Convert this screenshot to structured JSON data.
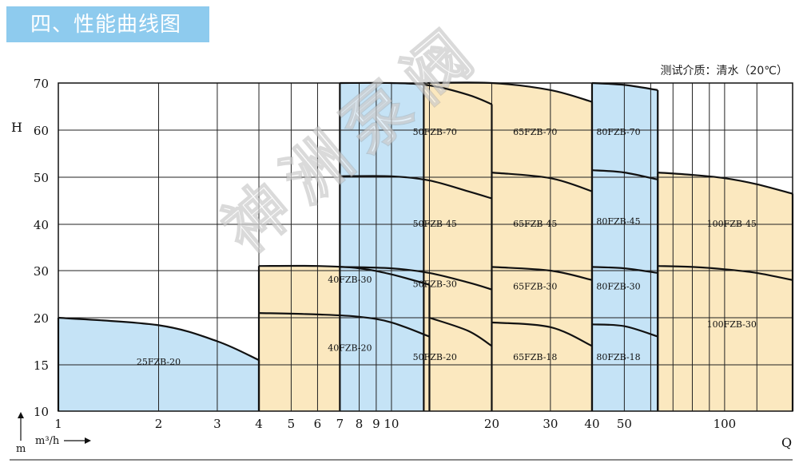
{
  "header": {
    "title": "四、性能曲线图",
    "medium_note": "测试介质：清水（20℃）"
  },
  "watermark": "神洲泵阀",
  "colors": {
    "blue_fill": "#c5e3f6",
    "yellow_fill": "#fbe8bf",
    "title_bar": "#8ecbee",
    "grid": "#222222"
  },
  "chart_data": {
    "type": "area",
    "title": "",
    "xlabel": "Q",
    "x_unit": "m³/h",
    "ylabel": "H",
    "y_unit": "m",
    "x_scale": "log",
    "xlim": [
      1,
      160
    ],
    "ylim": [
      10,
      70
    ],
    "x_ticks": [
      1,
      2,
      3,
      4,
      5,
      6,
      7,
      8,
      9,
      10,
      20,
      30,
      40,
      50,
      100
    ],
    "x_tick_labels": [
      "1",
      "2",
      "3",
      "4",
      "5",
      "6",
      "7",
      "8",
      "9",
      "10",
      "20",
      "30",
      "40",
      "50",
      "100"
    ],
    "x_gridlines": [
      1,
      2,
      3,
      4,
      5,
      6,
      7,
      8,
      9,
      10,
      13,
      20,
      30,
      40,
      50,
      60,
      70,
      80,
      90,
      100,
      125,
      160
    ],
    "y_ticks": [
      10,
      15,
      20,
      30,
      40,
      50,
      60,
      70
    ],
    "y_tick_labels": [
      "10",
      "15",
      "20",
      "30",
      "40",
      "50",
      "60",
      "70"
    ],
    "grid": true,
    "regions": [
      {
        "model_family": "25FZB",
        "fill": "blue",
        "q_range": [
          1,
          4
        ],
        "top_curve": [
          [
            1,
            20
          ],
          [
            2,
            19.2
          ],
          [
            3,
            17.5
          ],
          [
            4,
            15.5
          ]
        ],
        "curves": [
          {
            "name": "25FZB-20",
            "points": [
              [
                1,
                20
              ],
              [
                2,
                19.2
              ],
              [
                3,
                17.5
              ],
              [
                4,
                15.5
              ]
            ],
            "label_at": [
              2,
              15
            ]
          }
        ]
      },
      {
        "model_family": "40FZB",
        "fill": "yellow",
        "q_range": [
          4,
          13
        ],
        "top_curve": [
          [
            4,
            31
          ],
          [
            6,
            31
          ],
          [
            8,
            30.5
          ],
          [
            10,
            29.2
          ],
          [
            13,
            27
          ]
        ],
        "curves": [
          {
            "name": "40FZB-30",
            "points": [
              [
                4,
                31
              ],
              [
                6,
                31
              ],
              [
                8,
                30.5
              ],
              [
                10,
                29.2
              ],
              [
                13,
                27
              ]
            ],
            "label_at": [
              7.5,
              27.5
            ]
          },
          {
            "name": "40FZB-20",
            "points": [
              [
                4,
                21
              ],
              [
                6,
                20.7
              ],
              [
                8,
                20.2
              ],
              [
                10,
                19.5
              ],
              [
                13,
                18
              ]
            ],
            "label_at": [
              7.5,
              16.5
            ]
          }
        ]
      },
      {
        "model_family": "50FZB",
        "fill": "blue",
        "q_range": [
          7,
          20
        ],
        "top_curve": [
          [
            7,
            70
          ],
          [
            10,
            70
          ],
          [
            13,
            69.5
          ],
          [
            17,
            67.5
          ],
          [
            20,
            65.5
          ]
        ],
        "curves": [
          {
            "name": "50FZB-70",
            "points": [
              [
                7,
                70
              ],
              [
                10,
                70
              ],
              [
                13,
                69.5
              ],
              [
                17,
                67.5
              ],
              [
                20,
                65.5
              ]
            ],
            "label_at": [
              13.5,
              59
            ]
          },
          {
            "name": "50FZB-45",
            "points": [
              [
                7,
                50.2
              ],
              [
                10,
                50.2
              ],
              [
                13,
                49.3
              ],
              [
                17,
                47
              ],
              [
                20,
                45.5
              ]
            ],
            "label_at": [
              13.5,
              39.5
            ]
          },
          {
            "name": "50FZB-30",
            "points": [
              [
                7,
                30.8
              ],
              [
                10,
                30.5
              ],
              [
                13,
                29.5
              ],
              [
                17,
                27.5
              ],
              [
                20,
                26
              ]
            ],
            "label_at": [
              13.5,
              26.5
            ]
          },
          {
            "name": "50FZB-20",
            "points": [
              [
                13,
                20
              ],
              [
                17,
                18.6
              ],
              [
                20,
                17
              ]
            ],
            "label_at": [
              13.5,
              15.5
            ]
          }
        ]
      },
      {
        "model_family": "65FZB",
        "fill": "yellow",
        "q_range": [
          12.5,
          40
        ],
        "top_curve": [
          [
            12.5,
            70
          ],
          [
            20,
            70
          ],
          [
            30,
            68.5
          ],
          [
            40,
            66
          ]
        ],
        "curves": [
          {
            "name": "65FZB-70",
            "points": [
              [
                12.5,
                70
              ],
              [
                20,
                70
              ],
              [
                30,
                68.5
              ],
              [
                40,
                66
              ]
            ],
            "label_at": [
              27,
              59
            ]
          },
          {
            "name": "65FZB-45",
            "points": [
              [
                20,
                51
              ],
              [
                30,
                49.8
              ],
              [
                40,
                47
              ]
            ],
            "label_at": [
              27,
              39.5
            ]
          },
          {
            "name": "65FZB-30",
            "points": [
              [
                20,
                30.8
              ],
              [
                30,
                30
              ],
              [
                40,
                28
              ]
            ],
            "label_at": [
              27,
              26
            ]
          },
          {
            "name": "65FZB-18",
            "points": [
              [
                20,
                19.5
              ],
              [
                30,
                19
              ],
              [
                40,
                17
              ]
            ],
            "label_at": [
              27,
              15.5
            ]
          }
        ]
      },
      {
        "model_family": "80FZB",
        "fill": "blue",
        "q_range": [
          40,
          63
        ],
        "top_curve": [
          [
            40,
            70
          ],
          [
            50,
            69.6
          ],
          [
            63,
            68.5
          ]
        ],
        "curves": [
          {
            "name": "80FZB-70",
            "points": [
              [
                40,
                70
              ],
              [
                50,
                69.6
              ],
              [
                63,
                68.5
              ]
            ],
            "label_at": [
              48,
              59
            ]
          },
          {
            "name": "80FZB-45",
            "points": [
              [
                40,
                51.5
              ],
              [
                50,
                51
              ],
              [
                63,
                49.5
              ]
            ],
            "label_at": [
              48,
              40
            ]
          },
          {
            "name": "80FZB-30",
            "points": [
              [
                40,
                30.8
              ],
              [
                50,
                30.5
              ],
              [
                63,
                29.5
              ]
            ],
            "label_at": [
              48,
              26
            ]
          },
          {
            "name": "80FZB-18",
            "points": [
              [
                40,
                19.3
              ],
              [
                50,
                19.1
              ],
              [
                63,
                18
              ]
            ],
            "label_at": [
              48,
              15.5
            ]
          }
        ]
      },
      {
        "model_family": "100FZB",
        "fill": "yellow",
        "q_range": [
          63,
          160
        ],
        "top_curve": [
          [
            63,
            51
          ],
          [
            80,
            50.5
          ],
          [
            100,
            49.8
          ],
          [
            125,
            48.5
          ],
          [
            160,
            46.5
          ]
        ],
        "curves": [
          {
            "name": "100FZB-45",
            "points": [
              [
                63,
                51
              ],
              [
                80,
                50.5
              ],
              [
                100,
                49.8
              ],
              [
                125,
                48.5
              ],
              [
                160,
                46.5
              ]
            ],
            "label_at": [
              105,
              39.5
            ]
          },
          {
            "name": "100FZB-30",
            "points": [
              [
                63,
                31
              ],
              [
                80,
                30.8
              ],
              [
                100,
                30.3
              ],
              [
                125,
                29.5
              ],
              [
                160,
                28
              ]
            ],
            "label_at": [
              105,
              19
            ]
          }
        ]
      }
    ]
  }
}
